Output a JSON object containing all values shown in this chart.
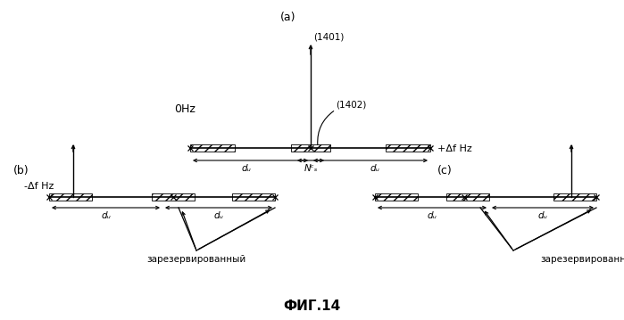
{
  "background_color": "#ffffff",
  "label_a": "(a)",
  "label_b": "(b)",
  "label_c": "(c)",
  "label_1401": "(1401)",
  "label_1402": "(1402)",
  "label_0hz": "0Hz",
  "label_neg_df": "-Δf Hz",
  "label_pos_df": "+Δf Hz",
  "label_du": "dᵤ",
  "label_ncs": "Nᶜₛ",
  "label_reserved": "зарезервированный",
  "fig_label": "ФИГ.14"
}
